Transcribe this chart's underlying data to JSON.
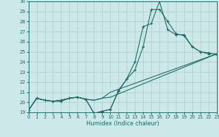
{
  "xlabel": "Humidex (Indice chaleur)",
  "xlim": [
    0,
    23
  ],
  "ylim": [
    19,
    30
  ],
  "yticks": [
    19,
    20,
    21,
    22,
    23,
    24,
    25,
    26,
    27,
    28,
    29,
    30
  ],
  "xticks": [
    0,
    1,
    2,
    3,
    4,
    5,
    6,
    7,
    8,
    9,
    10,
    11,
    12,
    13,
    14,
    15,
    16,
    17,
    18,
    19,
    20,
    21,
    22,
    23
  ],
  "bg_color": "#cce8e8",
  "grid_color": "#aacccc",
  "line_color": "#1a6868",
  "line1_x": [
    0,
    1,
    2,
    3,
    4,
    5,
    6,
    7,
    8,
    9,
    10,
    11,
    12,
    13,
    14,
    15,
    16,
    17,
    18,
    19,
    20,
    21,
    22,
    23
  ],
  "line1_y": [
    19.2,
    20.4,
    20.2,
    20.1,
    20.1,
    20.4,
    20.5,
    20.3,
    18.9,
    19.1,
    19.3,
    21.1,
    22.3,
    24.0,
    27.5,
    27.8,
    30.0,
    27.2,
    26.7,
    26.7,
    25.5,
    25.0,
    24.8,
    24.8
  ],
  "line2_x": [
    0,
    1,
    2,
    3,
    4,
    5,
    6,
    7,
    8,
    9,
    10,
    11,
    12,
    13,
    14,
    15,
    16,
    17,
    18,
    19,
    20,
    21,
    22,
    23
  ],
  "line2_y": [
    19.2,
    20.4,
    20.2,
    20.1,
    20.2,
    20.4,
    20.5,
    20.3,
    18.9,
    19.1,
    19.3,
    21.2,
    22.3,
    23.2,
    25.5,
    29.2,
    29.2,
    28.0,
    26.8,
    26.6,
    25.5,
    25.0,
    24.9,
    24.7
  ],
  "line3_x": [
    0,
    1,
    2,
    3,
    4,
    5,
    6,
    7,
    8,
    9,
    10,
    23
  ],
  "line3_y": [
    19.2,
    20.4,
    20.2,
    20.1,
    20.2,
    20.4,
    20.5,
    20.3,
    20.2,
    20.4,
    20.5,
    24.8
  ],
  "line4_x": [
    0,
    1,
    2,
    3,
    4,
    5,
    6,
    7,
    8,
    9,
    10,
    23
  ],
  "line4_y": [
    19.2,
    20.4,
    20.2,
    20.1,
    20.2,
    20.4,
    20.5,
    20.3,
    20.2,
    20.4,
    21.0,
    24.8
  ]
}
